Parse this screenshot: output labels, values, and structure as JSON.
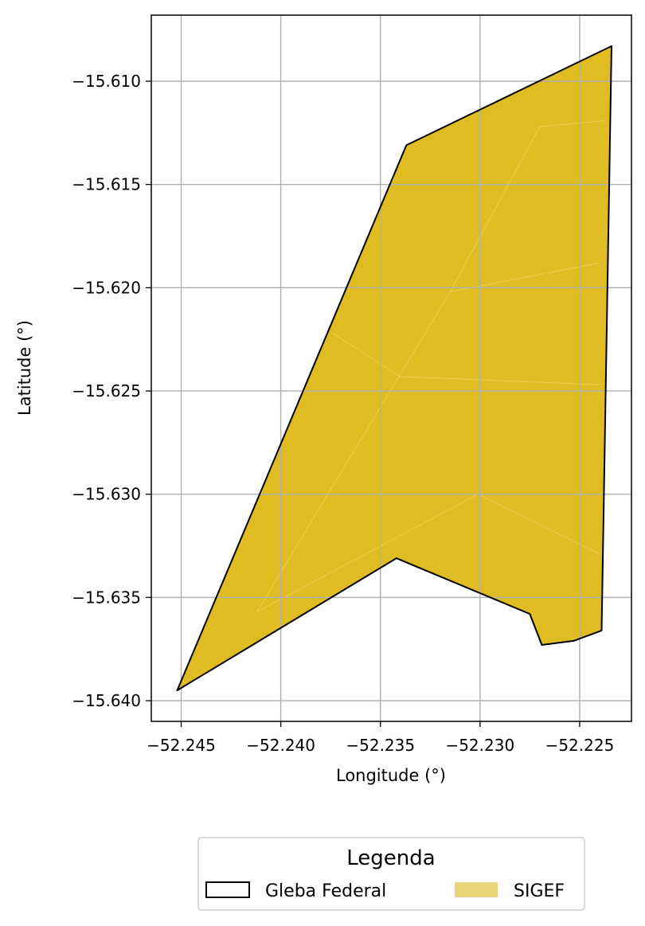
{
  "colors": {
    "sigef_fill": "#dfbd22",
    "sigef_legend": "#e8d27a",
    "gleba_edge": "#000000",
    "grid": "#b0b0b0",
    "internal_lines": "#ecd15a"
  },
  "chart_data": {
    "type": "map",
    "xlabel": "Longitude (°)",
    "ylabel": "Latitude (°)",
    "xlim": [
      -52.2465,
      -52.2224
    ],
    "ylim": [
      -15.641,
      -15.6068
    ],
    "xticks": [
      -52.245,
      -52.24,
      -52.235,
      -52.23,
      -52.225
    ],
    "xtick_labels": [
      "−52.245",
      "−52.240",
      "−52.235",
      "−52.230",
      "−52.225"
    ],
    "yticks": [
      -15.61,
      -15.615,
      -15.62,
      -15.625,
      -15.63,
      -15.635,
      -15.64
    ],
    "ytick_labels": [
      "−15.610",
      "−15.615",
      "−15.620",
      "−15.625",
      "−15.630",
      "−15.635",
      "−15.640"
    ],
    "grid": true,
    "legend": {
      "title": "Legenda",
      "placement": "below plot",
      "entries": [
        {
          "label": "Gleba Federal",
          "style": "outline"
        },
        {
          "label": "SIGEF",
          "style": "filled"
        }
      ]
    },
    "gleba_federal_polygon": [
      [
        -52.2452,
        -15.6395
      ],
      [
        -52.2337,
        -15.6131
      ],
      [
        -52.2234,
        -15.6083
      ],
      [
        -52.2239,
        -15.6366
      ],
      [
        -52.2253,
        -15.6371
      ],
      [
        -52.2269,
        -15.6373
      ],
      [
        -52.2275,
        -15.6358
      ],
      [
        -52.2342,
        -15.6331
      ]
    ],
    "sigef_internal_lines": [
      [
        [
          -52.2412,
          -15.6357
        ],
        [
          -52.2301,
          -15.63
        ],
        [
          -52.224,
          -15.6329
        ]
      ],
      [
        [
          -52.2412,
          -15.6357
        ],
        [
          -52.2315,
          -15.6202
        ],
        [
          -52.224,
          -15.6188
        ]
      ],
      [
        [
          -52.2315,
          -15.6202
        ],
        [
          -52.227,
          -15.6122
        ],
        [
          -52.2237,
          -15.6119
        ]
      ],
      [
        [
          -52.2374,
          -15.6222
        ],
        [
          -52.234,
          -15.6243
        ],
        [
          -52.224,
          -15.6247
        ]
      ]
    ]
  }
}
